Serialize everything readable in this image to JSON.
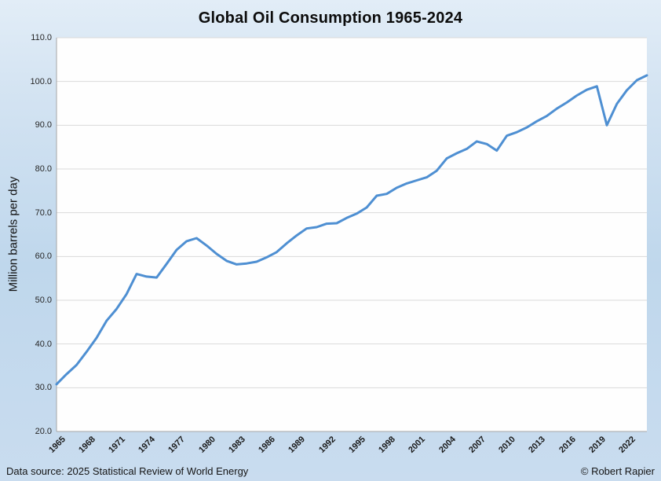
{
  "title": "Global Oil Consumption 1965-2024",
  "y_axis_title": "Million barrels per day",
  "footer": {
    "source": "Data source: 2025 Statistical Review of World Energy",
    "credit": "© Robert Rapier"
  },
  "colors": {
    "line": "#4E8FD2",
    "plot_background": "#FEFEFE",
    "gridline": "#D9D9D9",
    "axis_line": "#A6A6A6",
    "page_background_top": "#E2EDF7",
    "page_background_bottom": "#C9DCEF",
    "text": "#1A1A1A"
  },
  "chart_data": {
    "type": "line",
    "title": "Global Oil Consumption 1965-2024",
    "xlabel": "",
    "ylabel": "Million barrels per day",
    "ylim": [
      20,
      110
    ],
    "y_tick_step": 10,
    "y_tick_labels": [
      "110.0",
      "100.0",
      "90.0",
      "80.0",
      "70.0",
      "60.0",
      "50.0",
      "40.0",
      "30.0",
      "20.0"
    ],
    "y_tick_values": [
      110,
      100,
      90,
      80,
      70,
      60,
      50,
      40,
      30,
      20
    ],
    "x_tick_labels": [
      "1965",
      "1968",
      "1971",
      "1974",
      "1977",
      "1980",
      "1983",
      "1986",
      "1989",
      "1992",
      "1995",
      "1998",
      "2001",
      "2004",
      "2007",
      "2010",
      "2013",
      "2016",
      "2019",
      "2022"
    ],
    "grid": "horizontal",
    "legend": "none",
    "x": [
      1965,
      1966,
      1967,
      1968,
      1969,
      1970,
      1971,
      1972,
      1973,
      1974,
      1975,
      1976,
      1977,
      1978,
      1979,
      1980,
      1981,
      1982,
      1983,
      1984,
      1985,
      1986,
      1987,
      1988,
      1989,
      1990,
      1991,
      1992,
      1993,
      1994,
      1995,
      1996,
      1997,
      1998,
      1999,
      2000,
      2001,
      2002,
      2003,
      2004,
      2005,
      2006,
      2007,
      2008,
      2009,
      2010,
      2011,
      2012,
      2013,
      2014,
      2015,
      2016,
      2017,
      2018,
      2019,
      2020,
      2021,
      2022,
      2023,
      2024
    ],
    "series": [
      {
        "name": "Global oil consumption (million barrels per day)",
        "values": [
          30.8,
          33.1,
          35.2,
          38.2,
          41.4,
          45.3,
          48.0,
          51.4,
          56.0,
          55.4,
          55.2,
          58.3,
          61.5,
          63.5,
          64.2,
          62.5,
          60.6,
          59.0,
          58.2,
          58.4,
          58.8,
          59.8,
          61.0,
          63.0,
          64.8,
          66.4,
          66.7,
          67.5,
          67.6,
          68.8,
          69.8,
          71.2,
          73.9,
          74.3,
          75.7,
          76.7,
          77.4,
          78.1,
          79.6,
          82.4,
          83.6,
          84.6,
          86.3,
          85.7,
          84.2,
          87.6,
          88.4,
          89.5,
          90.9,
          92.1,
          93.8,
          95.2,
          96.8,
          98.1,
          98.9,
          90.0,
          94.9,
          98.0,
          100.3,
          101.4
        ]
      }
    ]
  }
}
